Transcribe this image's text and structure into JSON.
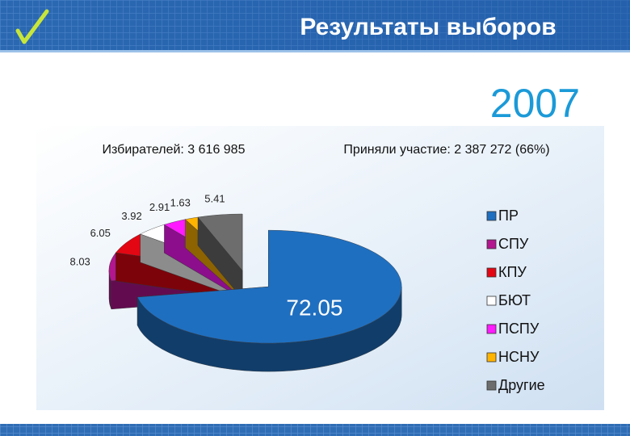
{
  "header": {
    "title": "Результаты выборов",
    "year": "2007"
  },
  "chart_data": {
    "type": "pie",
    "annotations": [
      "Избирателей: 3 616 985",
      "Приняли участие: 2 387 272 (66%)"
    ],
    "categories": [
      "ПР",
      "СПУ",
      "КПУ",
      "БЮТ",
      "ПСПУ",
      "НСНУ",
      "Другие"
    ],
    "values": [
      72.05,
      8.03,
      6.05,
      3.92,
      2.91,
      1.63,
      5.41
    ],
    "colors": [
      "#1f6fc0",
      "#b3168f",
      "#e30613",
      "#ffffff",
      "#ff1aff",
      "#ffb400",
      "#6d6d6d"
    ],
    "exploded": [
      0
    ],
    "legend": "right"
  }
}
